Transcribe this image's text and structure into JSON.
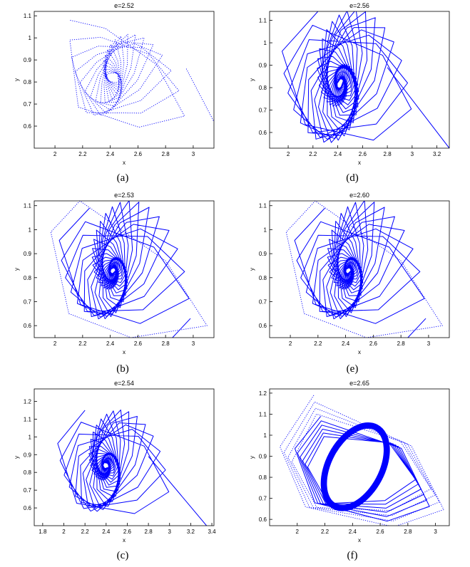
{
  "colors": {
    "series": "#0000ff",
    "axis": "#000000",
    "background": "#ffffff"
  },
  "chart_data": [
    {
      "id": "a",
      "caption": "(a)",
      "title": "e=2.52",
      "type": "line",
      "xlabel": "x",
      "ylabel": "y",
      "xlim": [
        1.85,
        3.15
      ],
      "ylim": [
        0.5,
        1.12
      ],
      "xticks": [
        "2",
        "2.2",
        "2.4",
        "2.6",
        "2.8",
        "3"
      ],
      "yticks": [
        "0.6",
        "0.7",
        "0.8",
        "0.9",
        "1",
        "1.1"
      ],
      "series": [
        {
          "style": "dotted",
          "center": [
            2.42,
            0.82
          ],
          "vertices": [
            [
              2.11,
              1.08
            ],
            [
              2.37,
              1.05
            ],
            [
              2.75,
              0.86
            ],
            [
              2.95,
              0.58
            ],
            [
              2.59,
              0.55
            ],
            [
              2.12,
              0.72
            ]
          ],
          "loops": 18,
          "shrink": 0.88,
          "twist": 0.2
        },
        {
          "style": "dotted",
          "type": "tail",
          "points": [
            [
              2.95,
              0.86
            ],
            [
              3.15,
              0.62
            ]
          ]
        }
      ]
    },
    {
      "id": "d",
      "caption": "(d)",
      "title": "e=2.56",
      "type": "line",
      "xlabel": "x",
      "ylabel": "y",
      "xlim": [
        1.85,
        3.3
      ],
      "ylim": [
        0.53,
        1.14
      ],
      "xticks": [
        "2",
        "2.2",
        "2.4",
        "2.6",
        "2.8",
        "3",
        "3.2"
      ],
      "yticks": [
        "0.6",
        "0.7",
        "0.8",
        "0.9",
        "1",
        "1.1"
      ],
      "series": [
        {
          "style": "solid",
          "center": [
            2.42,
            0.82
          ],
          "vertices": [
            [
              2.24,
              1.14
            ],
            [
              1.95,
              0.98
            ],
            [
              2.12,
              0.65
            ],
            [
              2.67,
              0.53
            ],
            [
              3.0,
              0.62
            ],
            [
              2.8,
              0.89
            ]
          ],
          "loops": 38,
          "shrink": 0.93,
          "twist": 0.2
        },
        {
          "style": "solid",
          "type": "tail",
          "points": [
            [
              2.8,
              0.89
            ],
            [
              3.3,
              0.53
            ]
          ]
        }
      ]
    },
    {
      "id": "b",
      "caption": "(b)",
      "title": "e=2.53",
      "type": "line",
      "xlabel": "x",
      "ylabel": "y",
      "xlim": [
        1.85,
        3.15
      ],
      "ylim": [
        0.55,
        1.12
      ],
      "xticks": [
        "2",
        "2.2",
        "2.4",
        "2.6",
        "2.8",
        "3"
      ],
      "yticks": [
        "0.6",
        "0.7",
        "0.8",
        "0.9",
        "1",
        "1.1"
      ],
      "series": [
        {
          "style": "dotted",
          "center": [
            2.42,
            0.83
          ],
          "vertices": [
            [
              2.18,
              1.12
            ],
            [
              1.97,
              0.99
            ],
            [
              2.1,
              0.65
            ],
            [
              2.55,
              0.55
            ],
            [
              3.1,
              0.6
            ],
            [
              2.8,
              0.87
            ]
          ],
          "loops": 1,
          "shrink": 1,
          "twist": 0
        },
        {
          "style": "solid",
          "center": [
            2.42,
            0.83
          ],
          "vertices": [
            [
              2.25,
              1.09
            ],
            [
              2.03,
              0.97
            ],
            [
              2.17,
              0.7
            ],
            [
              2.6,
              0.58
            ],
            [
              2.98,
              0.63
            ],
            [
              2.75,
              0.88
            ]
          ],
          "loops": 36,
          "shrink": 0.92,
          "twist": 0.2
        },
        {
          "style": "solid",
          "type": "tail",
          "points": [
            [
              2.98,
              0.63
            ],
            [
              2.85,
              0.55
            ]
          ]
        }
      ]
    },
    {
      "id": "e",
      "caption": "(e)",
      "title": "e=2.60",
      "type": "line",
      "xlabel": "x",
      "ylabel": "y",
      "xlim": [
        1.85,
        3.15
      ],
      "ylim": [
        0.55,
        1.12
      ],
      "xticks": [
        "2",
        "2.2",
        "2.4",
        "2.6",
        "2.8",
        "3"
      ],
      "yticks": [
        "0.6",
        "0.7",
        "0.8",
        "0.9",
        "1",
        "1.1"
      ],
      "series": [
        {
          "style": "dotted",
          "center": [
            2.42,
            0.83
          ],
          "vertices": [
            [
              2.18,
              1.12
            ],
            [
              1.97,
              0.99
            ],
            [
              2.1,
              0.65
            ],
            [
              2.55,
              0.55
            ],
            [
              3.1,
              0.6
            ],
            [
              2.8,
              0.87
            ]
          ],
          "loops": 1,
          "shrink": 1,
          "twist": 0
        },
        {
          "style": "solid",
          "center": [
            2.42,
            0.83
          ],
          "vertices": [
            [
              2.25,
              1.09
            ],
            [
              2.03,
              0.97
            ],
            [
              2.17,
              0.7
            ],
            [
              2.6,
              0.58
            ],
            [
              2.98,
              0.63
            ],
            [
              2.75,
              0.88
            ]
          ],
          "loops": 36,
          "shrink": 0.92,
          "twist": 0.2
        },
        {
          "style": "solid",
          "type": "tail",
          "points": [
            [
              2.98,
              0.63
            ],
            [
              2.85,
              0.55
            ]
          ]
        }
      ]
    },
    {
      "id": "c",
      "caption": "(c)",
      "title": "e=2.54",
      "type": "line",
      "xlabel": "x",
      "ylabel": "y",
      "xlim": [
        1.72,
        3.42
      ],
      "ylim": [
        0.5,
        1.27
      ],
      "xticks": [
        "1.8",
        "2",
        "2.2",
        "2.4",
        "2.6",
        "2.8",
        "3",
        "3.2",
        "3.4"
      ],
      "yticks": [
        "0.6",
        "0.7",
        "0.8",
        "0.9",
        "1",
        "1.1",
        "1.2"
      ],
      "series": [
        {
          "style": "solid",
          "center": [
            2.4,
            0.84
          ],
          "vertices": [
            [
              2.2,
              1.15
            ],
            [
              1.94,
              0.98
            ],
            [
              2.1,
              0.64
            ],
            [
              2.65,
              0.53
            ],
            [
              3.0,
              0.6
            ],
            [
              2.8,
              0.89
            ]
          ],
          "loops": 34,
          "shrink": 0.92,
          "twist": 0.2
        },
        {
          "style": "solid",
          "type": "tail",
          "points": [
            [
              2.8,
              0.89
            ],
            [
              3.35,
              0.5
            ]
          ]
        }
      ]
    },
    {
      "id": "f",
      "caption": "(f)",
      "title": "e=2.65",
      "type": "line",
      "xlabel": "x",
      "ylabel": "y",
      "xlim": [
        1.8,
        3.1
      ],
      "ylim": [
        0.57,
        1.22
      ],
      "xticks": [
        "2",
        "2.2",
        "2.4",
        "2.6",
        "2.8",
        "3"
      ],
      "yticks": [
        "0.6",
        "0.7",
        "0.8",
        "0.9",
        "1",
        "1.1",
        "1.2"
      ],
      "series": [
        {
          "style": "dotted",
          "center": [
            2.42,
            0.85
          ],
          "vertices": [
            [
              2.12,
              1.19
            ],
            [
              1.87,
              0.95
            ],
            [
              2.05,
              0.66
            ],
            [
              2.7,
              0.55
            ],
            [
              3.08,
              0.62
            ],
            [
              2.85,
              0.94
            ]
          ],
          "loops": 4,
          "shrink": 0.94,
          "twist": 0.04
        },
        {
          "style": "solid",
          "center": [
            2.42,
            0.85
          ],
          "vertices": [
            [
              2.17,
              1.09
            ],
            [
              1.98,
              0.94
            ],
            [
              2.12,
              0.68
            ],
            [
              2.65,
              0.58
            ],
            [
              2.97,
              0.64
            ],
            [
              2.77,
              0.93
            ]
          ],
          "loops": 6,
          "shrink": 0.95,
          "twist": 0.04
        },
        {
          "style": "solid",
          "type": "ring",
          "center": [
            2.42,
            0.85
          ],
          "rx": 0.3,
          "ry": 0.17,
          "angle": -62,
          "thickness": 0.045
        }
      ]
    }
  ]
}
